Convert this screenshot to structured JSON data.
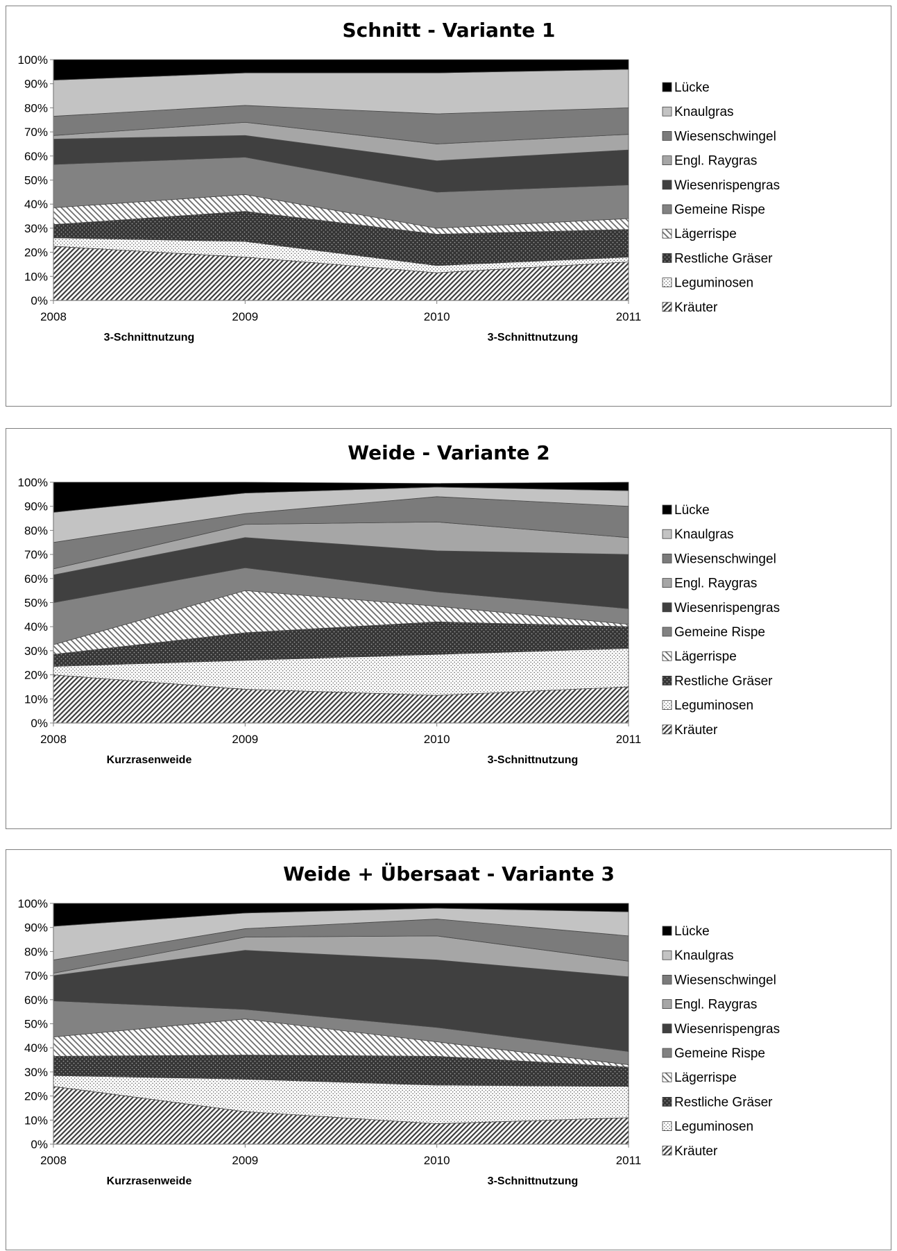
{
  "legend": [
    "Lücke",
    "Knaulgras",
    "Wiesenschwingel",
    "Engl. Raygras",
    "Wiesenrispengras",
    "Gemeine Rispe",
    "Lägerrispe",
    "Restliche Gräser",
    "Leguminosen",
    "Kräuter"
  ],
  "chart_data": [
    {
      "type": "area",
      "title": "Schnitt - Variante 1",
      "x": [
        "2008",
        "2009",
        "2010",
        "2011"
      ],
      "ylim": [
        0,
        100
      ],
      "yticks": [
        "0%",
        "10%",
        "20%",
        "30%",
        "40%",
        "50%",
        "60%",
        "70%",
        "80%",
        "90%",
        "100%"
      ],
      "notes": [
        "3-Schnittnutzung",
        "3-Schnittnutzung"
      ],
      "stacked_percent": true,
      "series": [
        {
          "name": "Kräuter",
          "values": [
            22.5,
            18,
            11.5,
            16
          ]
        },
        {
          "name": "Leguminosen",
          "values": [
            3.5,
            6.5,
            3,
            2
          ]
        },
        {
          "name": "Restliche Gräser",
          "values": [
            5.5,
            12.5,
            13,
            11.5
          ]
        },
        {
          "name": "Lägerrispe",
          "values": [
            7,
            7,
            2.5,
            4.5
          ]
        },
        {
          "name": "Gemeine Rispe",
          "values": [
            18,
            15.5,
            15,
            14
          ]
        },
        {
          "name": "Wiesenrispengras",
          "values": [
            10.5,
            9,
            13,
            14.5
          ]
        },
        {
          "name": "Engl. Raygras",
          "values": [
            1.5,
            5.5,
            7,
            6.5
          ]
        },
        {
          "name": "Wiesenschwingel",
          "values": [
            8,
            7,
            12.5,
            11
          ]
        },
        {
          "name": "Knaulgras",
          "values": [
            15,
            13.5,
            17,
            16
          ]
        },
        {
          "name": "Lücke",
          "values": [
            8.5,
            5.5,
            5.5,
            4
          ]
        }
      ]
    },
    {
      "type": "area",
      "title": "Weide - Variante 2",
      "x": [
        "2008",
        "2009",
        "2010",
        "2011"
      ],
      "ylim": [
        0,
        100
      ],
      "yticks": [
        "0%",
        "10%",
        "20%",
        "30%",
        "40%",
        "50%",
        "60%",
        "70%",
        "80%",
        "90%",
        "100%"
      ],
      "notes": [
        "Kurzrasenweide",
        "3-Schnittnutzung"
      ],
      "stacked_percent": true,
      "series": [
        {
          "name": "Kräuter",
          "values": [
            20,
            14,
            11.5,
            15
          ]
        },
        {
          "name": "Leguminosen",
          "values": [
            3.5,
            12,
            17,
            16
          ]
        },
        {
          "name": "Restliche Gräser",
          "values": [
            5,
            11.5,
            13.5,
            9
          ]
        },
        {
          "name": "Lägerrispe",
          "values": [
            4,
            17.5,
            6.5,
            1
          ]
        },
        {
          "name": "Gemeine Rispe",
          "values": [
            17.5,
            9.5,
            6,
            6.5
          ]
        },
        {
          "name": "Wiesenrispengras",
          "values": [
            11.5,
            12.5,
            17,
            22.5
          ]
        },
        {
          "name": "Engl. Raygras",
          "values": [
            2.5,
            5.5,
            12,
            7
          ]
        },
        {
          "name": "Wiesenschwingel",
          "values": [
            11,
            4.5,
            10.5,
            13
          ]
        },
        {
          "name": "Knaulgras",
          "values": [
            12.5,
            8.5,
            4,
            6.5
          ]
        },
        {
          "name": "Lücke",
          "values": [
            12.5,
            4.5,
            1.5,
            3.5
          ]
        }
      ]
    },
    {
      "type": "area",
      "title": "Weide + Übersaat - Variante 3",
      "x": [
        "2008",
        "2009",
        "2010",
        "2011"
      ],
      "ylim": [
        0,
        100
      ],
      "yticks": [
        "0%",
        "10%",
        "20%",
        "30%",
        "40%",
        "50%",
        "60%",
        "70%",
        "80%",
        "90%",
        "100%"
      ],
      "notes": [
        "Kurzrasenweide",
        "3-Schnittnutzung"
      ],
      "stacked_percent": true,
      "series": [
        {
          "name": "Kräuter",
          "values": [
            24,
            13.5,
            8.5,
            11
          ]
        },
        {
          "name": "Leguminosen",
          "values": [
            4.5,
            13.5,
            16,
            13
          ]
        },
        {
          "name": "Restliche Gräser",
          "values": [
            8,
            10,
            12,
            8
          ]
        },
        {
          "name": "Lägerrispe",
          "values": [
            8,
            15,
            6,
            1
          ]
        },
        {
          "name": "Gemeine Rispe",
          "values": [
            15,
            4,
            6,
            5.5
          ]
        },
        {
          "name": "Wiesenrispengras",
          "values": [
            10.5,
            24.5,
            28,
            31
          ]
        },
        {
          "name": "Engl. Raygras",
          "values": [
            1,
            5.5,
            10,
            6.5
          ]
        },
        {
          "name": "Wiesenschwingel",
          "values": [
            5.5,
            3.5,
            7,
            10.5
          ]
        },
        {
          "name": "Knaulgras",
          "values": [
            14,
            6.5,
            4.5,
            10
          ]
        },
        {
          "name": "Lücke",
          "values": [
            9.5,
            4,
            2,
            3.5
          ]
        }
      ]
    }
  ]
}
